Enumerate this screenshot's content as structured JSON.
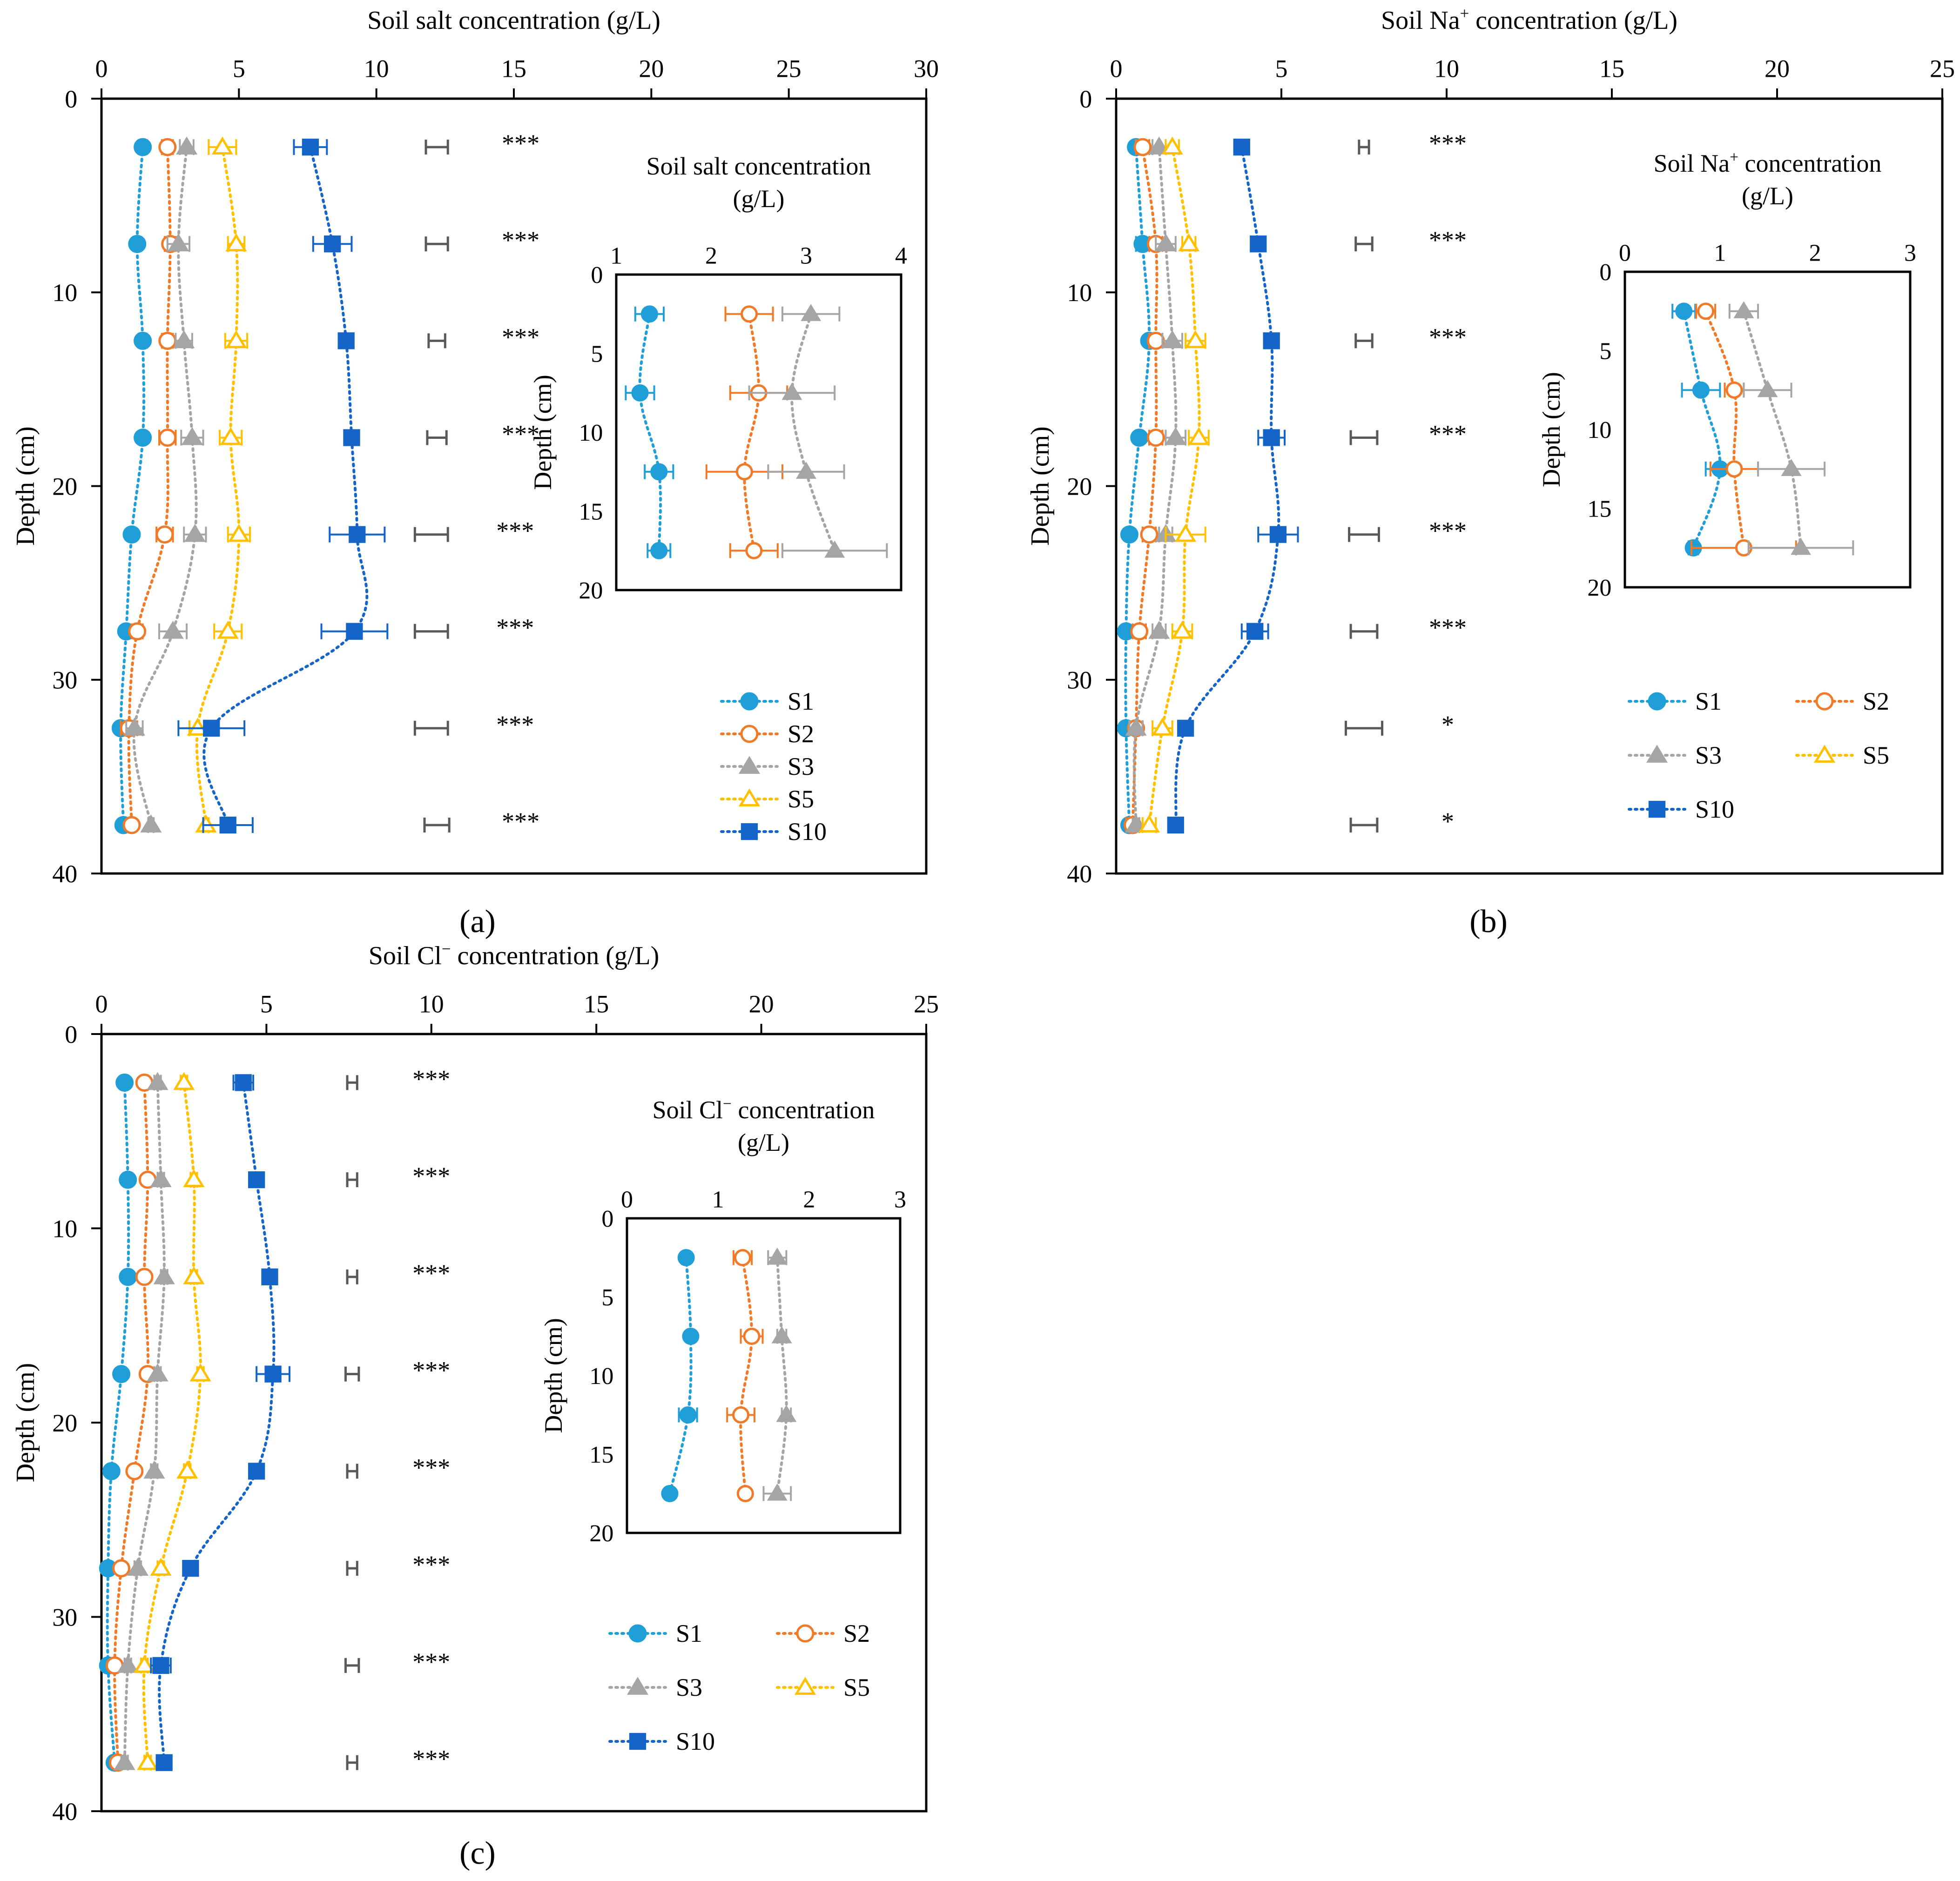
{
  "figure": {
    "series_styles": [
      {
        "name": "S1",
        "color": "#1f9ed8",
        "marker": "circle",
        "filled": true
      },
      {
        "name": "S2",
        "color": "#f07a28",
        "marker": "circle",
        "filled": false
      },
      {
        "name": "S3",
        "color": "#a5a5a5",
        "marker": "triangle",
        "filled": true
      },
      {
        "name": "S5",
        "color": "#ffc000",
        "marker": "triangle",
        "filled": false
      },
      {
        "name": "S10",
        "color": "#1565c8",
        "marker": "square",
        "filled": true
      }
    ],
    "lsd_color": "#595959"
  },
  "chart_data": [
    {
      "id": "a",
      "type": "line",
      "panel_label": "(a)",
      "title": "Soil salt concentration (g/L)",
      "xlabel": "Soil salt concentration (g/L)",
      "ylabel": "Depth (cm)",
      "xlim": [
        0,
        30
      ],
      "ylim": [
        0,
        40
      ],
      "xticks": [
        "0",
        "5",
        "10",
        "15",
        "20",
        "25",
        "30"
      ],
      "yticks": [
        "0",
        "10",
        "20",
        "30",
        "40"
      ],
      "depths": [
        2.5,
        7.5,
        12.5,
        17.5,
        22.5,
        27.5,
        32.5,
        37.5
      ],
      "series": [
        {
          "name": "S1",
          "values": [
            1.5,
            1.3,
            1.5,
            1.5,
            1.1,
            0.9,
            0.7,
            0.8
          ],
          "errors": [
            0.15,
            0.15,
            0.15,
            0.1,
            0.1,
            0.1,
            0.1,
            0.1
          ]
        },
        {
          "name": "S2",
          "values": [
            2.4,
            2.5,
            2.4,
            2.4,
            2.3,
            1.3,
            1.0,
            1.1
          ],
          "errors": [
            0.2,
            0.2,
            0.2,
            0.3,
            0.3,
            0.2,
            0.3,
            0.1
          ]
        },
        {
          "name": "S3",
          "values": [
            3.1,
            2.8,
            3.0,
            3.3,
            3.4,
            2.6,
            1.2,
            1.8
          ],
          "errors": [
            0.25,
            0.4,
            0.3,
            0.4,
            0.4,
            0.5,
            0.3,
            0.1
          ]
        },
        {
          "name": "S5",
          "values": [
            4.4,
            4.9,
            4.9,
            4.7,
            5.0,
            4.6,
            3.5,
            3.8
          ],
          "errors": [
            0.5,
            0.3,
            0.4,
            0.4,
            0.4,
            0.5,
            0.3,
            0.1
          ]
        },
        {
          "name": "S10",
          "values": [
            7.6,
            8.4,
            8.9,
            9.1,
            9.3,
            9.2,
            4.0,
            4.6
          ],
          "errors": [
            0.6,
            0.7,
            0.1,
            0.1,
            1.0,
            1.2,
            1.2,
            0.9
          ]
        }
      ],
      "lsd": [
        {
          "center": 12.2,
          "half_width": 0.4
        },
        {
          "center": 12.2,
          "half_width": 0.4
        },
        {
          "center": 12.2,
          "half_width": 0.3
        },
        {
          "center": 12.2,
          "half_width": 0.35
        },
        {
          "center": 12.0,
          "half_width": 0.6
        },
        {
          "center": 12.0,
          "half_width": 0.6
        },
        {
          "center": 12.0,
          "half_width": 0.6
        },
        {
          "center": 12.2,
          "half_width": 0.45
        }
      ],
      "significance": [
        "***",
        "***",
        "***",
        "***",
        "***",
        "***",
        "***",
        "***"
      ],
      "inset": {
        "title_line1": "Soil salt concentration",
        "title_line2": "(g/L)",
        "ylabel": "Depth (cm)",
        "xlim": [
          1,
          4
        ],
        "ylim": [
          0,
          20
        ],
        "xticks": [
          "1",
          "2",
          "3",
          "4"
        ],
        "yticks": [
          "0",
          "5",
          "10",
          "15",
          "20"
        ],
        "depths": [
          2.5,
          7.5,
          12.5,
          17.5
        ],
        "series": [
          {
            "name": "S1",
            "values": [
              1.35,
              1.25,
              1.45,
              1.45
            ],
            "errors": [
              0.15,
              0.15,
              0.15,
              0.12
            ]
          },
          {
            "name": "S2",
            "values": [
              2.4,
              2.5,
              2.35,
              2.45
            ],
            "errors": [
              0.25,
              0.3,
              0.4,
              0.25
            ]
          },
          {
            "name": "S3",
            "values": [
              3.05,
              2.85,
              3.0,
              3.3
            ],
            "errors": [
              0.3,
              0.45,
              0.4,
              0.55
            ]
          }
        ]
      },
      "legend": {
        "position": "bottom-right",
        "entries": [
          "S1",
          "S2",
          "S3",
          "S5",
          "S10"
        ]
      }
    },
    {
      "id": "b",
      "type": "line",
      "panel_label": "(b)",
      "title": "Soil Na+ concentration (g/L)",
      "title_parts": [
        "Soil Na",
        "+",
        " concentration (g/L)"
      ],
      "xlabel": "Soil Na+ concentration (g/L)",
      "ylabel": "Depth (cm)",
      "xlim": [
        0,
        25
      ],
      "ylim": [
        0,
        40
      ],
      "xticks": [
        "0",
        "5",
        "10",
        "15",
        "20",
        "25"
      ],
      "yticks": [
        "0",
        "10",
        "20",
        "30",
        "40"
      ],
      "depths": [
        2.5,
        7.5,
        12.5,
        17.5,
        22.5,
        27.5,
        32.5,
        37.5
      ],
      "series": [
        {
          "name": "S1",
          "values": [
            0.6,
            0.8,
            1.0,
            0.7,
            0.4,
            0.3,
            0.3,
            0.4
          ],
          "errors": [
            0.1,
            0.2,
            0.1,
            0.1,
            0.1,
            0.1,
            0.1,
            0.1
          ]
        },
        {
          "name": "S2",
          "values": [
            0.8,
            1.2,
            1.2,
            1.2,
            1.0,
            0.7,
            0.6,
            0.5
          ],
          "errors": [
            0.2,
            0.2,
            0.2,
            0.2,
            0.2,
            0.2,
            0.2,
            0.2
          ]
        },
        {
          "name": "S3",
          "values": [
            1.3,
            1.5,
            1.7,
            1.8,
            1.5,
            1.3,
            0.6,
            0.6
          ],
          "errors": [
            0.2,
            0.3,
            0.3,
            0.3,
            0.2,
            0.2,
            0.2,
            0.1
          ]
        },
        {
          "name": "S5",
          "values": [
            1.7,
            2.2,
            2.4,
            2.5,
            2.1,
            2.0,
            1.4,
            1.0
          ],
          "errors": [
            0.2,
            0.2,
            0.3,
            0.3,
            0.6,
            0.3,
            0.3,
            0.2
          ]
        },
        {
          "name": "S10",
          "values": [
            3.8,
            4.3,
            4.7,
            4.7,
            4.9,
            4.2,
            2.1,
            1.8
          ],
          "errors": [
            0.1,
            0.2,
            0.1,
            0.4,
            0.6,
            0.4,
            0.2,
            0.2
          ]
        }
      ],
      "lsd": [
        {
          "center": 7.5,
          "half_width": 0.15
        },
        {
          "center": 7.5,
          "half_width": 0.25
        },
        {
          "center": 7.5,
          "half_width": 0.25
        },
        {
          "center": 7.5,
          "half_width": 0.4
        },
        {
          "center": 7.5,
          "half_width": 0.45
        },
        {
          "center": 7.5,
          "half_width": 0.4
        },
        {
          "center": 7.5,
          "half_width": 0.55
        },
        {
          "center": 7.5,
          "half_width": 0.4
        }
      ],
      "significance": [
        "***",
        "***",
        "***",
        "***",
        "***",
        "***",
        "*",
        "*"
      ],
      "inset": {
        "title_line1": "Soil Na+ concentration",
        "title_line1_parts": [
          "Soil Na",
          "+",
          " concentration"
        ],
        "title_line2": "(g/L)",
        "ylabel": "Depth (cm)",
        "xlim": [
          0,
          3
        ],
        "ylim": [
          0,
          20
        ],
        "xticks": [
          "0",
          "1",
          "2",
          "3"
        ],
        "yticks": [
          "0",
          "5",
          "10",
          "15",
          "20"
        ],
        "depths": [
          2.5,
          7.5,
          12.5,
          17.5
        ],
        "series": [
          {
            "name": "S1",
            "values": [
              0.62,
              0.8,
              1.0,
              0.72
            ],
            "errors": [
              0.12,
              0.2,
              0.15,
              0.05
            ]
          },
          {
            "name": "S2",
            "values": [
              0.85,
              1.15,
              1.15,
              1.25
            ],
            "errors": [
              0.1,
              0.1,
              0.25,
              0.55
            ]
          },
          {
            "name": "S3",
            "values": [
              1.25,
              1.5,
              1.75,
              1.85
            ],
            "errors": [
              0.15,
              0.25,
              0.35,
              0.55
            ]
          }
        ]
      },
      "legend": {
        "position": "right",
        "entries": [
          "S1",
          "S2",
          "S3",
          "S5",
          "S10"
        ]
      }
    },
    {
      "id": "c",
      "type": "line",
      "panel_label": "(c)",
      "title": "Soil Cl− concentration (g/L)",
      "title_parts": [
        "Soil Cl",
        "−",
        " concentration (g/L)"
      ],
      "xlabel": "Soil Cl− concentration (g/L)",
      "ylabel": "Depth (cm)",
      "xlim": [
        0,
        25
      ],
      "ylim": [
        0,
        40
      ],
      "xticks": [
        "0",
        "5",
        "10",
        "15",
        "20",
        "25"
      ],
      "yticks": [
        "0",
        "10",
        "20",
        "30",
        "40"
      ],
      "depths": [
        2.5,
        7.5,
        12.5,
        17.5,
        22.5,
        27.5,
        32.5,
        37.5
      ],
      "series": [
        {
          "name": "S1",
          "values": [
            0.7,
            0.8,
            0.8,
            0.6,
            0.3,
            0.2,
            0.2,
            0.4
          ],
          "errors": [
            0.05,
            0.05,
            0.05,
            0.05,
            0.05,
            0.05,
            0.05,
            0.05
          ]
        },
        {
          "name": "S2",
          "values": [
            1.3,
            1.4,
            1.3,
            1.4,
            1.0,
            0.6,
            0.4,
            0.5
          ],
          "errors": [
            0.1,
            0.1,
            0.1,
            0.1,
            0.1,
            0.1,
            0.1,
            0.1
          ]
        },
        {
          "name": "S3",
          "values": [
            1.7,
            1.8,
            1.9,
            1.7,
            1.6,
            1.1,
            0.8,
            0.7
          ],
          "errors": [
            0.1,
            0.1,
            0.1,
            0.1,
            0.1,
            0.1,
            0.1,
            0.1
          ]
        },
        {
          "name": "S5",
          "values": [
            2.5,
            2.8,
            2.8,
            3.0,
            2.6,
            1.8,
            1.3,
            1.4
          ],
          "errors": [
            0.1,
            0.1,
            0.1,
            0.1,
            0.1,
            0.1,
            0.1,
            0.1
          ]
        },
        {
          "name": "S10",
          "values": [
            4.3,
            4.7,
            5.1,
            5.2,
            4.7,
            2.7,
            1.8,
            1.9
          ],
          "errors": [
            0.3,
            0.2,
            0.2,
            0.5,
            0.1,
            0.1,
            0.3,
            0.1
          ]
        }
      ],
      "lsd": [
        {
          "center": 7.6,
          "half_width": 0.15
        },
        {
          "center": 7.6,
          "half_width": 0.15
        },
        {
          "center": 7.6,
          "half_width": 0.15
        },
        {
          "center": 7.6,
          "half_width": 0.2
        },
        {
          "center": 7.6,
          "half_width": 0.15
        },
        {
          "center": 7.6,
          "half_width": 0.15
        },
        {
          "center": 7.6,
          "half_width": 0.2
        },
        {
          "center": 7.6,
          "half_width": 0.15
        }
      ],
      "significance": [
        "***",
        "***",
        "***",
        "***",
        "***",
        "***",
        "***",
        "***"
      ],
      "inset": {
        "title_line1": "Soil Cl− concentration",
        "title_line1_parts": [
          "Soil Cl",
          "−",
          " concentration"
        ],
        "title_line2": "(g/L)",
        "ylabel": "Depth (cm)",
        "xlim": [
          0,
          3
        ],
        "ylim": [
          0,
          20
        ],
        "xticks": [
          "0",
          "1",
          "2",
          "3"
        ],
        "yticks": [
          "0",
          "5",
          "10",
          "15",
          "20"
        ],
        "depths": [
          2.5,
          7.5,
          12.5,
          17.5
        ],
        "series": [
          {
            "name": "S1",
            "values": [
              0.65,
              0.7,
              0.67,
              0.47
            ],
            "errors": [
              0.03,
              0.03,
              0.1,
              0.03
            ]
          },
          {
            "name": "S2",
            "values": [
              1.27,
              1.37,
              1.25,
              1.3
            ],
            "errors": [
              0.1,
              0.12,
              0.15,
              0.03
            ]
          },
          {
            "name": "S3",
            "values": [
              1.65,
              1.7,
              1.75,
              1.65
            ],
            "errors": [
              0.1,
              0.05,
              0.05,
              0.15
            ]
          }
        ]
      },
      "legend": {
        "position": "right",
        "entries": [
          "S1",
          "S2",
          "S3",
          "S5",
          "S10"
        ]
      }
    }
  ]
}
